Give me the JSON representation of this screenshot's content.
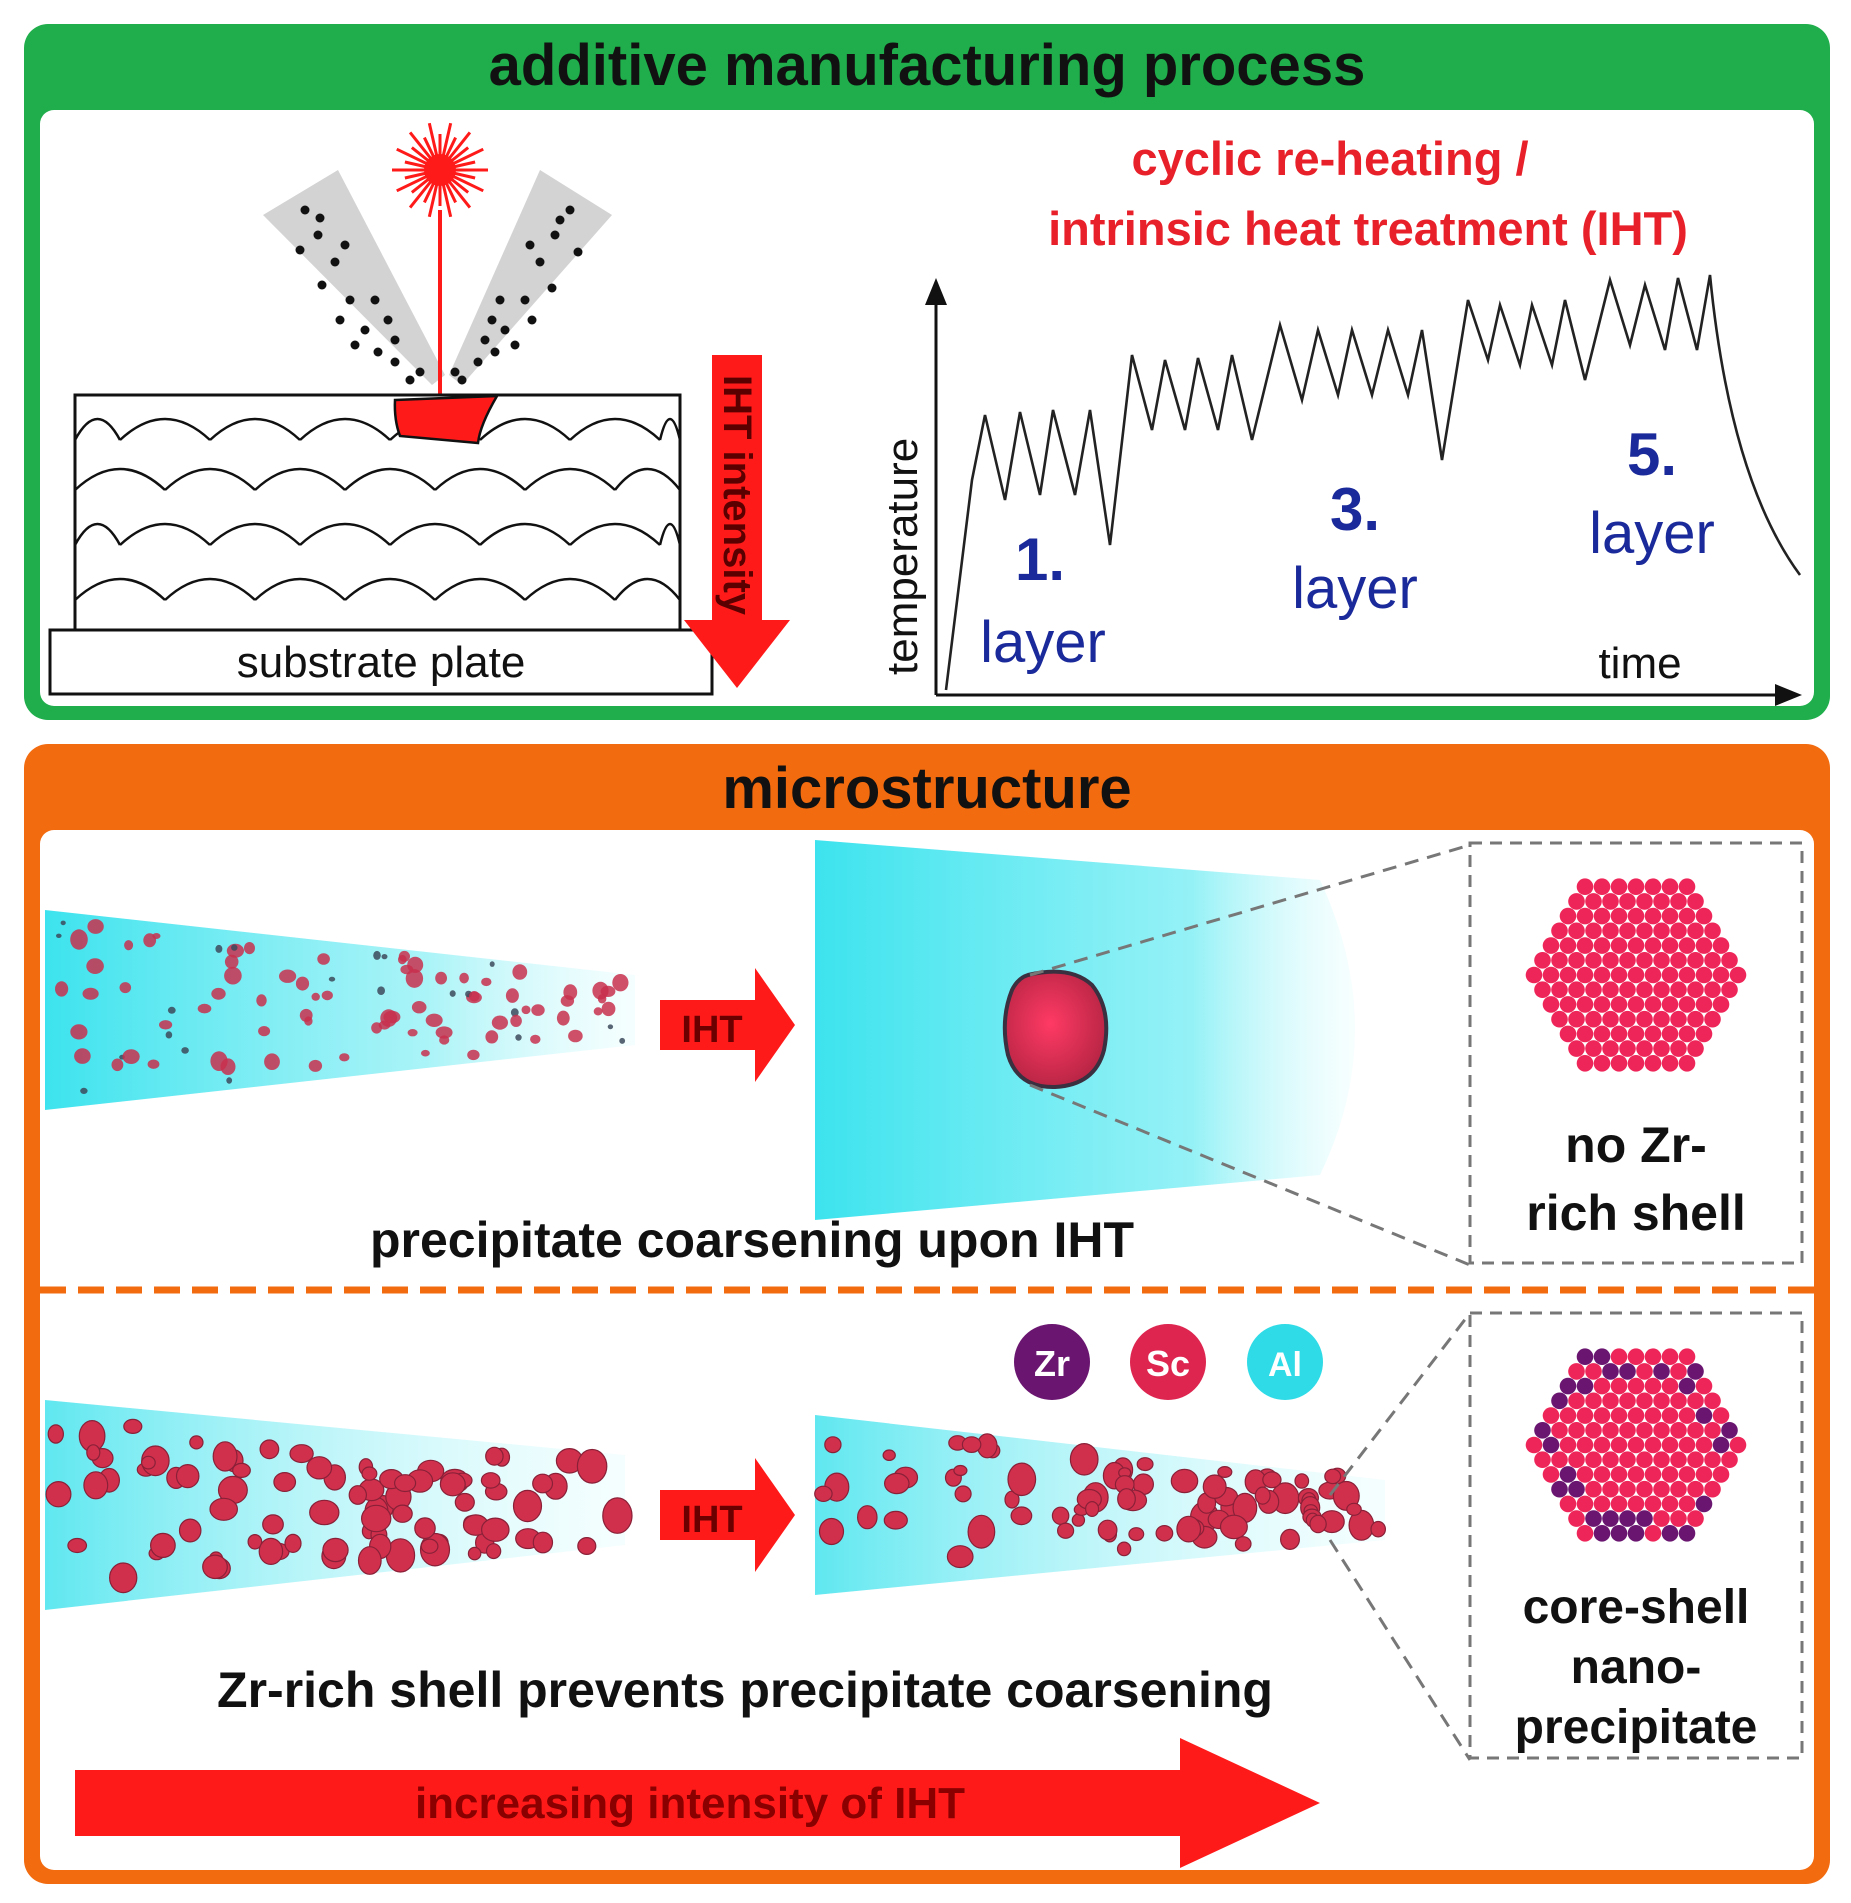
{
  "top_panel": {
    "title": "additive manufacturing process",
    "substrate_label": "substrate plate",
    "iht_intensity_label": "IHT intensity",
    "graph_title_line1": "cyclic re-heating /",
    "graph_title_line2": "intrinsic heat treatment (IHT)",
    "y_axis_label": "temperature",
    "x_axis_label": "time",
    "layer1_num": "1.",
    "layer1_word": "layer",
    "layer3_num": "3.",
    "layer3_word": "layer",
    "layer5_num": "5.",
    "layer5_word": "layer"
  },
  "bottom_panel": {
    "title": "microstructure",
    "row1_arrow_label": "IHT",
    "row1_caption": "precipitate coarsening upon IHT",
    "row1_box_line1": "no Zr-",
    "row1_box_line2": "rich shell",
    "legend_zr": "Zr",
    "legend_sc": "Sc",
    "legend_al": "Al",
    "row2_arrow_label": "IHT",
    "row2_caption": "Zr-rich shell prevents precipitate coarsening",
    "row2_box_line1": "core-shell",
    "row2_box_line2": "nano-",
    "row2_box_line3": "precipitate",
    "bottom_arrow_label": "increasing intensity of IHT"
  },
  "colors": {
    "green_frame": "#1fae4b",
    "orange_frame": "#f26b0f",
    "red": "#ff1a1a",
    "title_red": "#e8202a",
    "layer_blue": "#1b2a9a",
    "precip": "#d0304c",
    "cyan": "#3fe0ec",
    "zr": "#6a1670",
    "sc": "#dd2550",
    "al": "#2fdbe6"
  }
}
